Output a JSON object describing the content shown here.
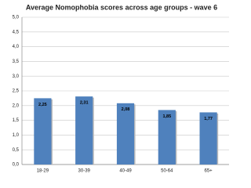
{
  "chart_data": {
    "type": "bar",
    "title": "Average Nomophobia scores across age groups - wave 6",
    "categories": [
      "18-29",
      "30-39",
      "40-49",
      "50-64",
      "65+"
    ],
    "values": [
      2.25,
      2.31,
      2.08,
      1.85,
      1.77
    ],
    "value_labels": [
      "2,25",
      "2,31",
      "2,08",
      "1,85",
      "1,77"
    ],
    "color": "#4f81bd",
    "ylim": [
      0,
      5
    ],
    "yticks": [
      {
        "value": 0,
        "label": "0,0"
      },
      {
        "value": 0.5,
        "label": "0,5"
      },
      {
        "value": 1,
        "label": "1,0"
      },
      {
        "value": 1.5,
        "label": "1,5"
      },
      {
        "value": 2,
        "label": "2,0"
      },
      {
        "value": 2.5,
        "label": "2,5"
      },
      {
        "value": 3,
        "label": "3,0"
      },
      {
        "value": 3.5,
        "label": "3,5"
      },
      {
        "value": 4,
        "label": "4,0"
      },
      {
        "value": 4.5,
        "label": "4,5"
      },
      {
        "value": 5,
        "label": "5,0"
      }
    ],
    "grid": true
  }
}
